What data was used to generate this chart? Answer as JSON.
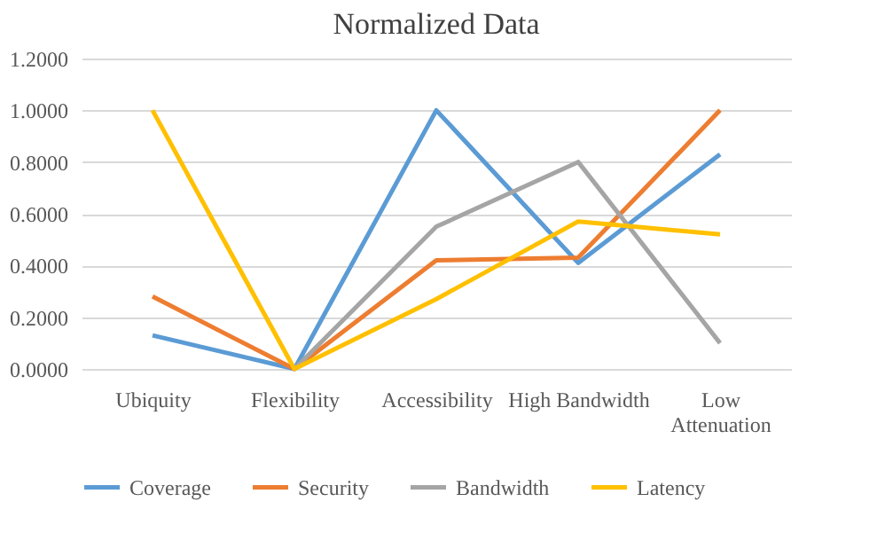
{
  "chart_data": {
    "type": "line",
    "title": "Normalized Data",
    "categories": [
      "Ubiquity",
      "Flexibility",
      "Accessibility",
      "High Bandwidth",
      "Low Attenuation"
    ],
    "series": [
      {
        "name": "Coverage",
        "color": "#5b9bd5",
        "values": [
          0.13,
          0.0,
          1.0,
          0.41,
          0.83
        ]
      },
      {
        "name": "Security",
        "color": "#ed7d31",
        "values": [
          0.28,
          0.0,
          0.42,
          0.43,
          1.0
        ]
      },
      {
        "name": "Bandwidth",
        "color": "#a5a5a5",
        "values": [
          null,
          0.0,
          0.55,
          0.8,
          0.1
        ]
      },
      {
        "name": "Latency",
        "color": "#ffc000",
        "values": [
          1.0,
          0.0,
          0.27,
          0.57,
          0.52
        ]
      }
    ],
    "ylim": [
      0,
      1.2
    ],
    "yticks": [
      {
        "value": 0,
        "label": "0.0000"
      },
      {
        "value": 0.2,
        "label": "0.2000"
      },
      {
        "value": 0.4,
        "label": "0.4000"
      },
      {
        "value": 0.6,
        "label": "0.6000"
      },
      {
        "value": 0.8,
        "label": "0.8000"
      },
      {
        "value": 1.0,
        "label": "1.0000"
      },
      {
        "value": 1.2,
        "label": "1.2000"
      }
    ],
    "grid": "y",
    "legend": "bottom",
    "line_style": "solid",
    "marker": "none"
  }
}
